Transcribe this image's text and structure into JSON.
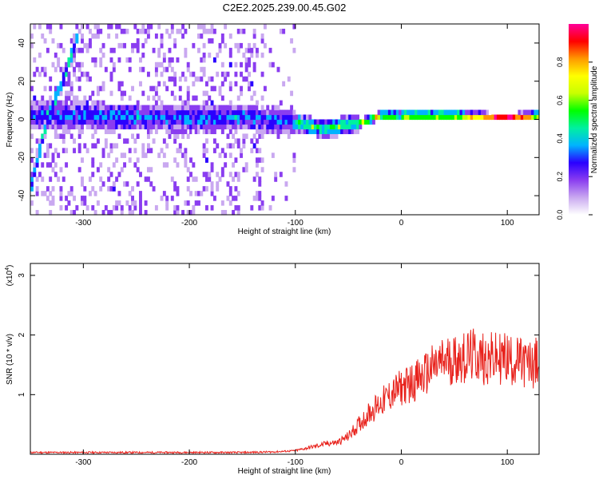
{
  "title": "C2E2.2025.239.00.45.G02",
  "chart_data": [
    {
      "type": "heatmap",
      "xlabel": "Height of straight line (km)",
      "ylabel": "Frequency (Hz)",
      "xlim": [
        -350,
        130
      ],
      "ylim": [
        -50,
        50
      ],
      "xticks": [
        -300,
        -200,
        -100,
        0,
        100
      ],
      "yticks": [
        -40,
        -20,
        0,
        20,
        40
      ],
      "colorbar": {
        "label": "Normalized spectral amplitude",
        "range": [
          0,
          1
        ],
        "ticks": [
          "0.0",
          "0.2",
          "0.4",
          "0.6",
          "0.8"
        ],
        "colors": [
          "#ffffff",
          "#c9a8f0",
          "#8a3df0",
          "#2a00ff",
          "#00b3ff",
          "#00f0a0",
          "#00ff00",
          "#c8ff00",
          "#ffff00",
          "#ff9900",
          "#ff0000",
          "#ff0099"
        ]
      },
      "features": [
        {
          "name": "main trace",
          "x": [
            -350,
            -300,
            -250,
            -200,
            -150,
            -100,
            -75,
            -60,
            -40,
            -20,
            0,
            50,
            100,
            130
          ],
          "y": [
            1,
            1,
            0,
            -1,
            0,
            -3,
            -6,
            -5,
            -3,
            1,
            1,
            1,
            0,
            1
          ]
        },
        {
          "name": "diagonal streak",
          "x": [
            -350,
            -335,
            -320,
            -305
          ],
          "y": [
            -35,
            0,
            20,
            45
          ]
        }
      ],
      "grid": false
    },
    {
      "type": "line",
      "xlabel": "Height of straight line (km)",
      "ylabel": "SNR (10 * v/v)",
      "yscale_label": "(x10",
      "yscale_exponent": "4",
      "xlim": [
        -350,
        130
      ],
      "ylim": [
        0,
        3.2
      ],
      "xticks": [
        -300,
        -200,
        -100,
        0,
        100
      ],
      "yticks": [
        1,
        2,
        3
      ],
      "series": [
        {
          "color": "#e8221c",
          "x": [
            -350,
            -300,
            -250,
            -200,
            -150,
            -120,
            -100,
            -90,
            -80,
            -70,
            -60,
            -50,
            -40,
            -30,
            -20,
            -10,
            0,
            10,
            20,
            30,
            40,
            50,
            60,
            65,
            70,
            80,
            90,
            98,
            102,
            110,
            120,
            130
          ],
          "y": [
            0.03,
            0.03,
            0.03,
            0.03,
            0.03,
            0.04,
            0.06,
            0.1,
            0.14,
            0.18,
            0.2,
            0.3,
            0.5,
            0.7,
            0.85,
            1.0,
            1.12,
            1.2,
            1.3,
            1.45,
            1.55,
            1.6,
            1.62,
            1.65,
            1.65,
            1.6,
            1.6,
            1.62,
            1.6,
            1.55,
            1.5,
            1.55
          ]
        }
      ],
      "grid": false
    }
  ]
}
